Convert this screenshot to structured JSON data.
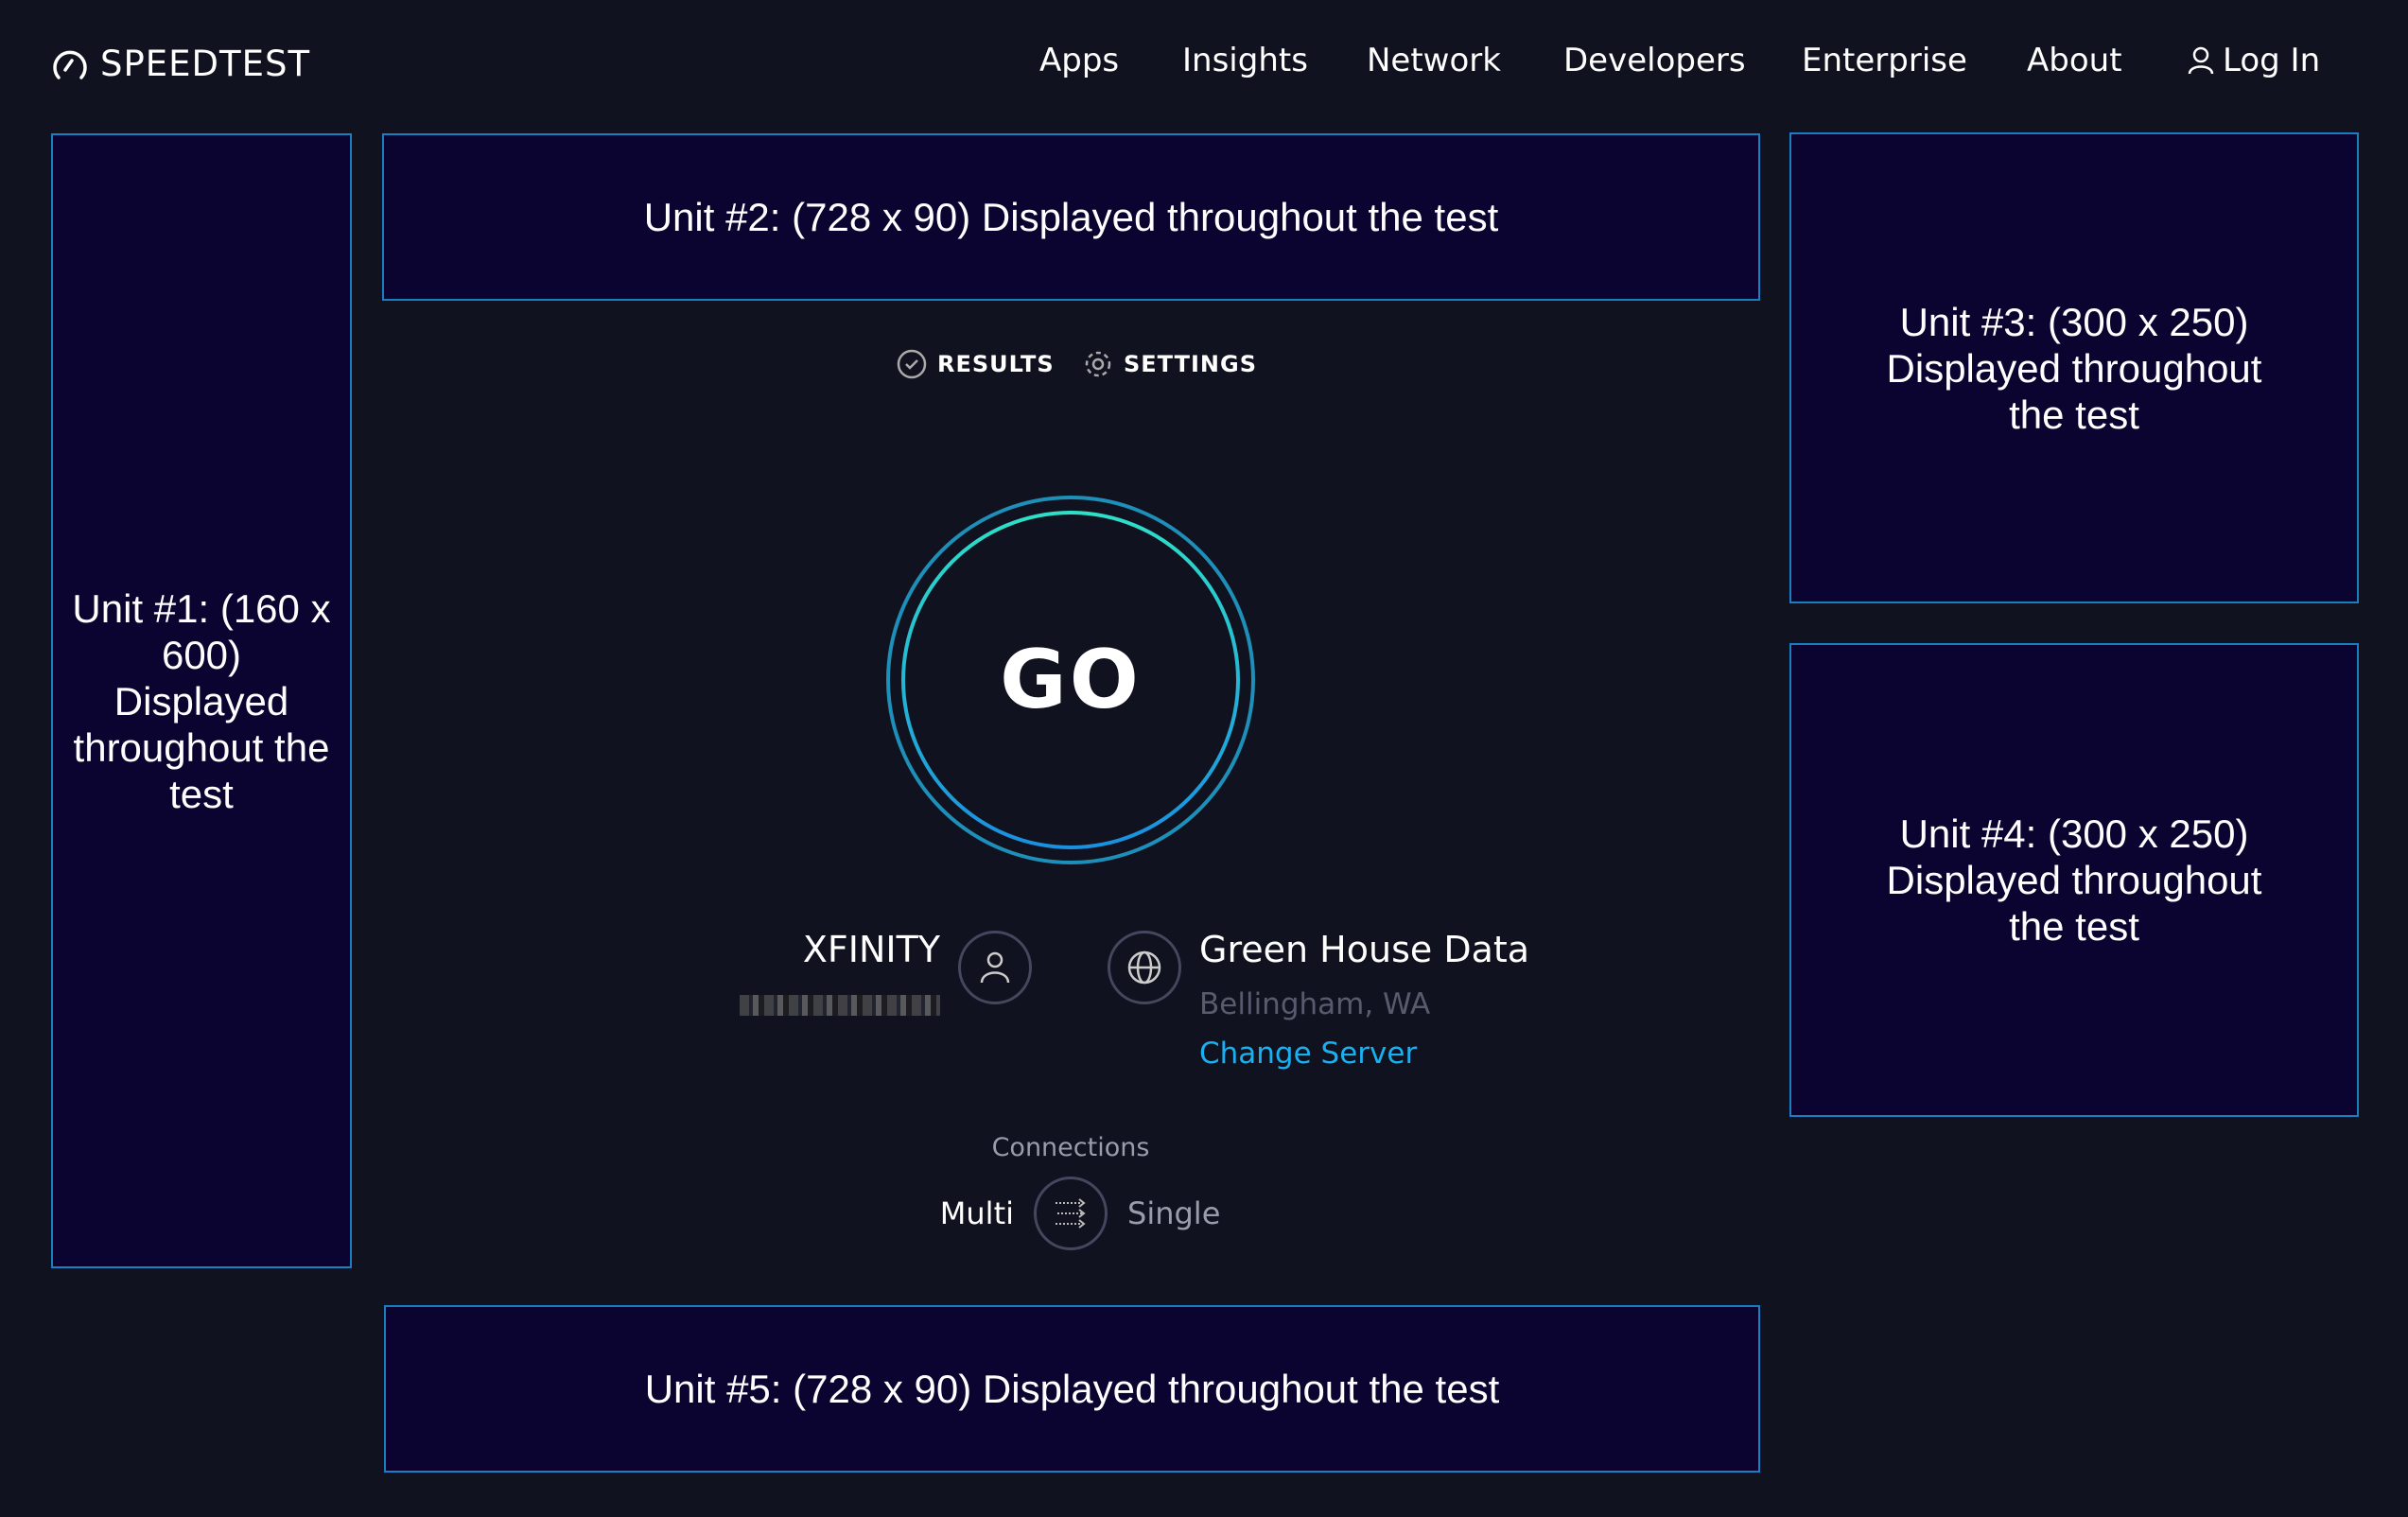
{
  "header": {
    "logo": "SPEEDTEST",
    "nav": [
      "Apps",
      "Insights",
      "Network",
      "Developers",
      "Enterprise",
      "About"
    ],
    "login": "Log In"
  },
  "ads": {
    "unit1": "Unit #1: (160 x 600) Displayed throughout the test",
    "unit2": "Unit #2: (728 x 90) Displayed throughout the test",
    "unit3": "Unit #3: (300 x 250) Displayed throughout the test",
    "unit4": "Unit #4: (300 x 250) Displayed throughout the test",
    "unit5": "Unit #5: (728 x 90) Displayed throughout the test"
  },
  "tabs": {
    "results": "RESULTS",
    "settings": "SETTINGS"
  },
  "go": "GO",
  "isp": {
    "name": "XFINITY"
  },
  "server": {
    "name": "Green House Data",
    "location": "Bellingham, WA",
    "change": "Change Server"
  },
  "connections": {
    "label": "Connections",
    "multi": "Multi",
    "single": "Single",
    "selected": "Multi"
  },
  "colors": {
    "accent": "#1ab0f0",
    "ad_bg": "#0b0330",
    "ad_border": "#1a7fc0",
    "bg": "#11121f"
  }
}
